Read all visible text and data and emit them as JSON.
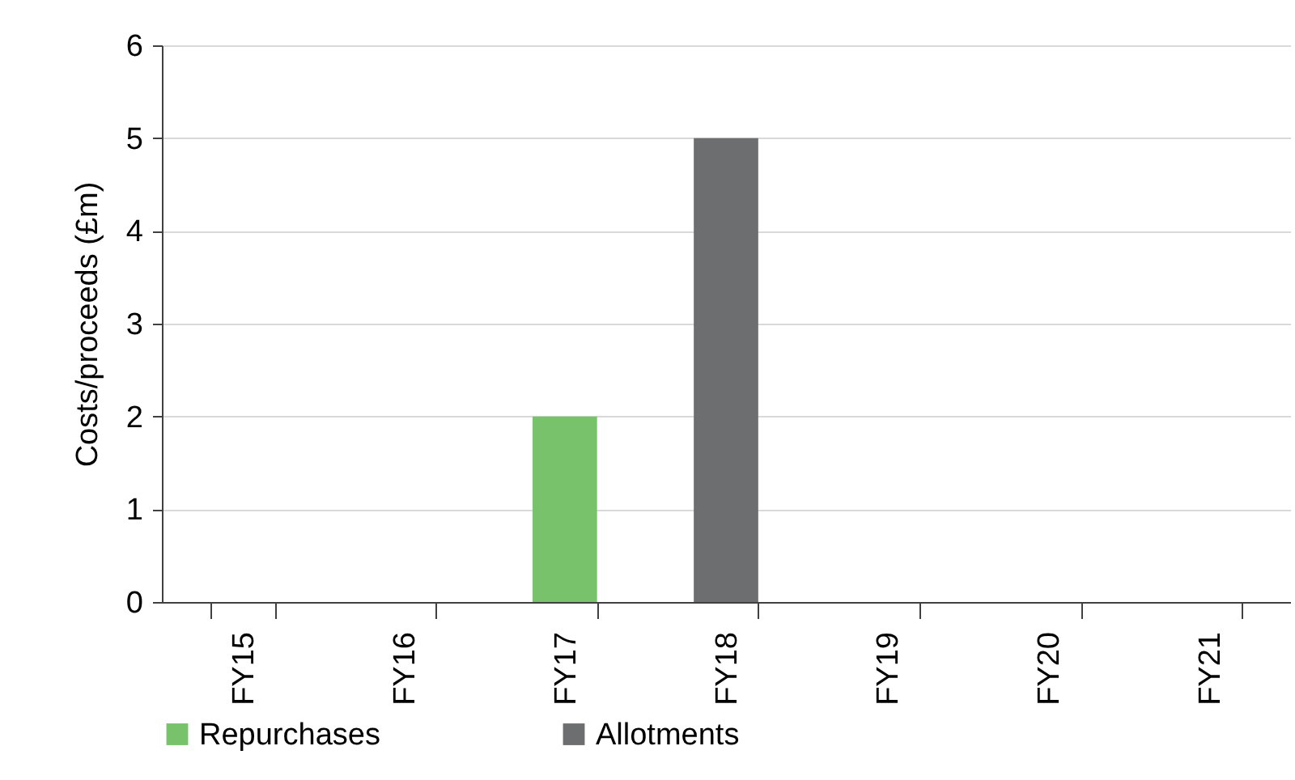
{
  "chart_data": {
    "type": "bar",
    "ylabel": "Costs/proceeds (£m)",
    "categories": [
      "FY15",
      "FY16",
      "FY17",
      "FY18",
      "FY19",
      "FY20",
      "FY21"
    ],
    "series": [
      {
        "name": "Repurchases",
        "color": "#77c26a",
        "values": [
          null,
          null,
          2,
          null,
          null,
          null,
          null
        ]
      },
      {
        "name": "Allotments",
        "color": "#6d6e70",
        "values": [
          null,
          null,
          null,
          5,
          null,
          null,
          null
        ]
      }
    ],
    "ylim": [
      0,
      6
    ],
    "yticks": [
      0,
      1,
      2,
      3,
      4,
      5,
      6
    ],
    "grid": "y",
    "legend": "bottom"
  }
}
